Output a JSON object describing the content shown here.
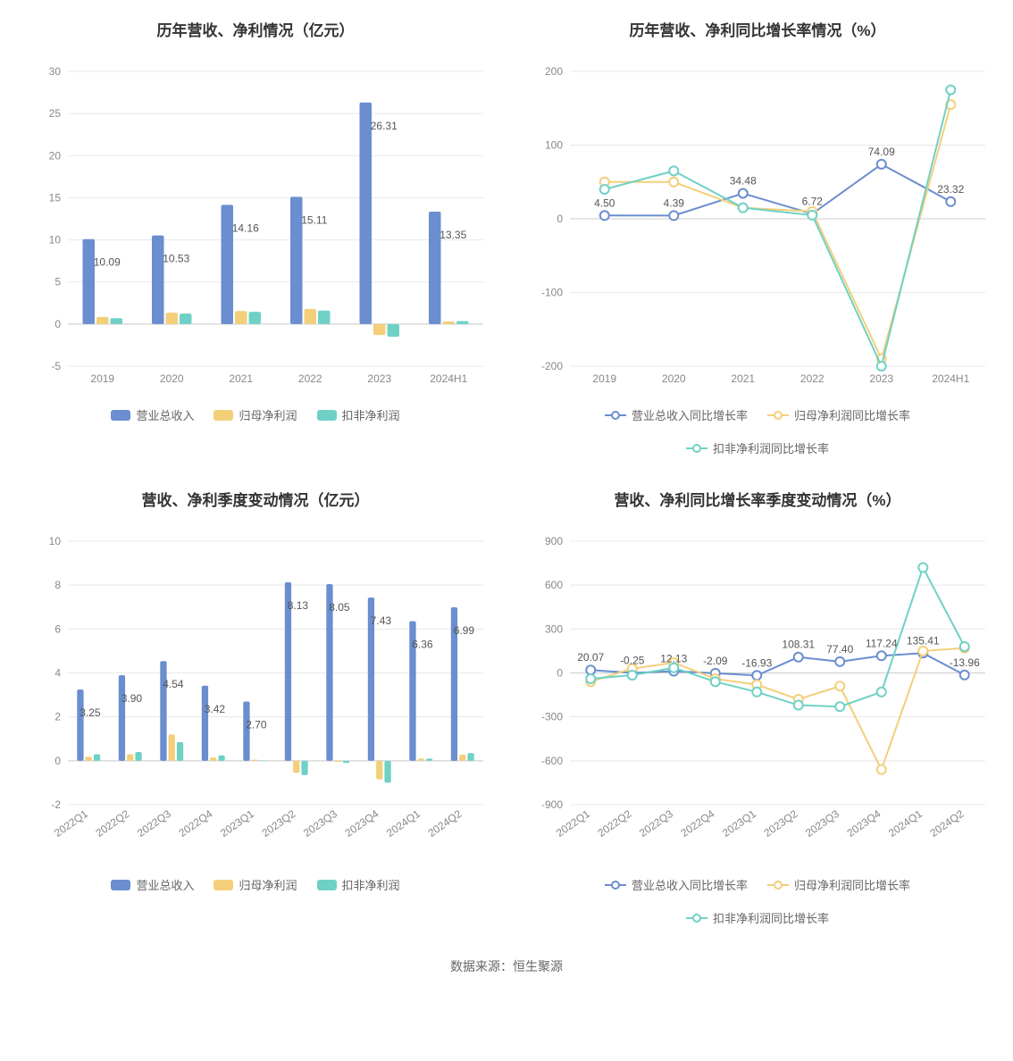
{
  "source_label": "数据来源：恒生聚源",
  "colors": {
    "series1": "#6a8ecf",
    "series2": "#f3cf7a",
    "series3": "#6fd1c6",
    "axis_text": "#888888",
    "grid": "#e8e8e8",
    "title": "#333333",
    "value_label": "#555555"
  },
  "legend_bar_labels": {
    "s1": "营业总收入",
    "s2": "归母净利润",
    "s3": "扣非净利润"
  },
  "legend_line_labels": {
    "s1": "营业总收入同比增长率",
    "s2": "归母净利润同比增长率",
    "s3": "扣非净利润同比增长率"
  },
  "chart1": {
    "title": "历年营收、净利情况（亿元）",
    "type": "grouped-bar",
    "categories": [
      "2019",
      "2020",
      "2021",
      "2022",
      "2023",
      "2024H1"
    ],
    "series": [
      {
        "key": "s1",
        "values": [
          10.09,
          10.53,
          14.16,
          15.11,
          26.31,
          13.35
        ]
      },
      {
        "key": "s2",
        "values": [
          0.85,
          1.35,
          1.55,
          1.8,
          -1.3,
          0.3
        ]
      },
      {
        "key": "s3",
        "values": [
          0.7,
          1.25,
          1.45,
          1.6,
          -1.5,
          0.35
        ]
      }
    ],
    "ylim": [
      -5,
      30
    ],
    "ytick_step": 5,
    "bar_group_width": 0.6,
    "label_series_index": 0,
    "label_fontsize": 12
  },
  "chart2": {
    "title": "历年营收、净利同比增长率情况（%）",
    "type": "line",
    "categories": [
      "2019",
      "2020",
      "2021",
      "2022",
      "2023",
      "2024H1"
    ],
    "series": [
      {
        "key": "s1",
        "values": [
          4.5,
          4.39,
          34.48,
          6.72,
          74.09,
          23.32
        ]
      },
      {
        "key": "s2",
        "values": [
          50,
          50,
          15,
          10,
          -190,
          155
        ]
      },
      {
        "key": "s3",
        "values": [
          40,
          65,
          15,
          5,
          -200,
          175
        ]
      }
    ],
    "ylim": [
      -200,
      200
    ],
    "ytick_step": 100,
    "label_series_index": 0,
    "line_width": 2,
    "marker_radius": 5
  },
  "chart3": {
    "title": "营收、净利季度变动情况（亿元）",
    "type": "grouped-bar",
    "categories": [
      "2022Q1",
      "2022Q2",
      "2022Q3",
      "2022Q4",
      "2023Q1",
      "2023Q2",
      "2023Q3",
      "2023Q4",
      "2024Q1",
      "2024Q2"
    ],
    "rotate_xticks": true,
    "series": [
      {
        "key": "s1",
        "values": [
          3.25,
          3.9,
          4.54,
          3.42,
          2.7,
          8.13,
          8.05,
          7.43,
          6.36,
          6.99
        ]
      },
      {
        "key": "s2",
        "values": [
          0.18,
          0.3,
          1.2,
          0.15,
          0.05,
          -0.55,
          -0.05,
          -0.85,
          0.1,
          0.28
        ]
      },
      {
        "key": "s3",
        "values": [
          0.3,
          0.4,
          0.85,
          0.25,
          0.02,
          -0.65,
          -0.1,
          -1.0,
          0.1,
          0.35
        ]
      }
    ],
    "ylim": [
      -2,
      10
    ],
    "ytick_step": 2,
    "bar_group_width": 0.6,
    "label_series_index": 0,
    "label_fontsize": 12
  },
  "chart4": {
    "title": "营收、净利同比增长率季度变动情况（%）",
    "type": "line",
    "categories": [
      "2022Q1",
      "2022Q2",
      "2022Q3",
      "2022Q4",
      "2023Q1",
      "2023Q2",
      "2023Q3",
      "2023Q4",
      "2024Q1",
      "2024Q2"
    ],
    "rotate_xticks": true,
    "series": [
      {
        "key": "s1",
        "values": [
          20.07,
          -0.25,
          12.13,
          -2.09,
          -16.93,
          108.31,
          77.4,
          117.24,
          135.41,
          -13.96
        ]
      },
      {
        "key": "s2",
        "values": [
          -60,
          30,
          70,
          -40,
          -80,
          -180,
          -90,
          -660,
          150,
          170
        ]
      },
      {
        "key": "s3",
        "values": [
          -40,
          -15,
          35,
          -60,
          -130,
          -220,
          -230,
          -130,
          720,
          180
        ]
      }
    ],
    "ylim": [
      -900,
      900
    ],
    "ytick_step": 300,
    "label_series_index": 0,
    "line_width": 2,
    "marker_radius": 5
  }
}
